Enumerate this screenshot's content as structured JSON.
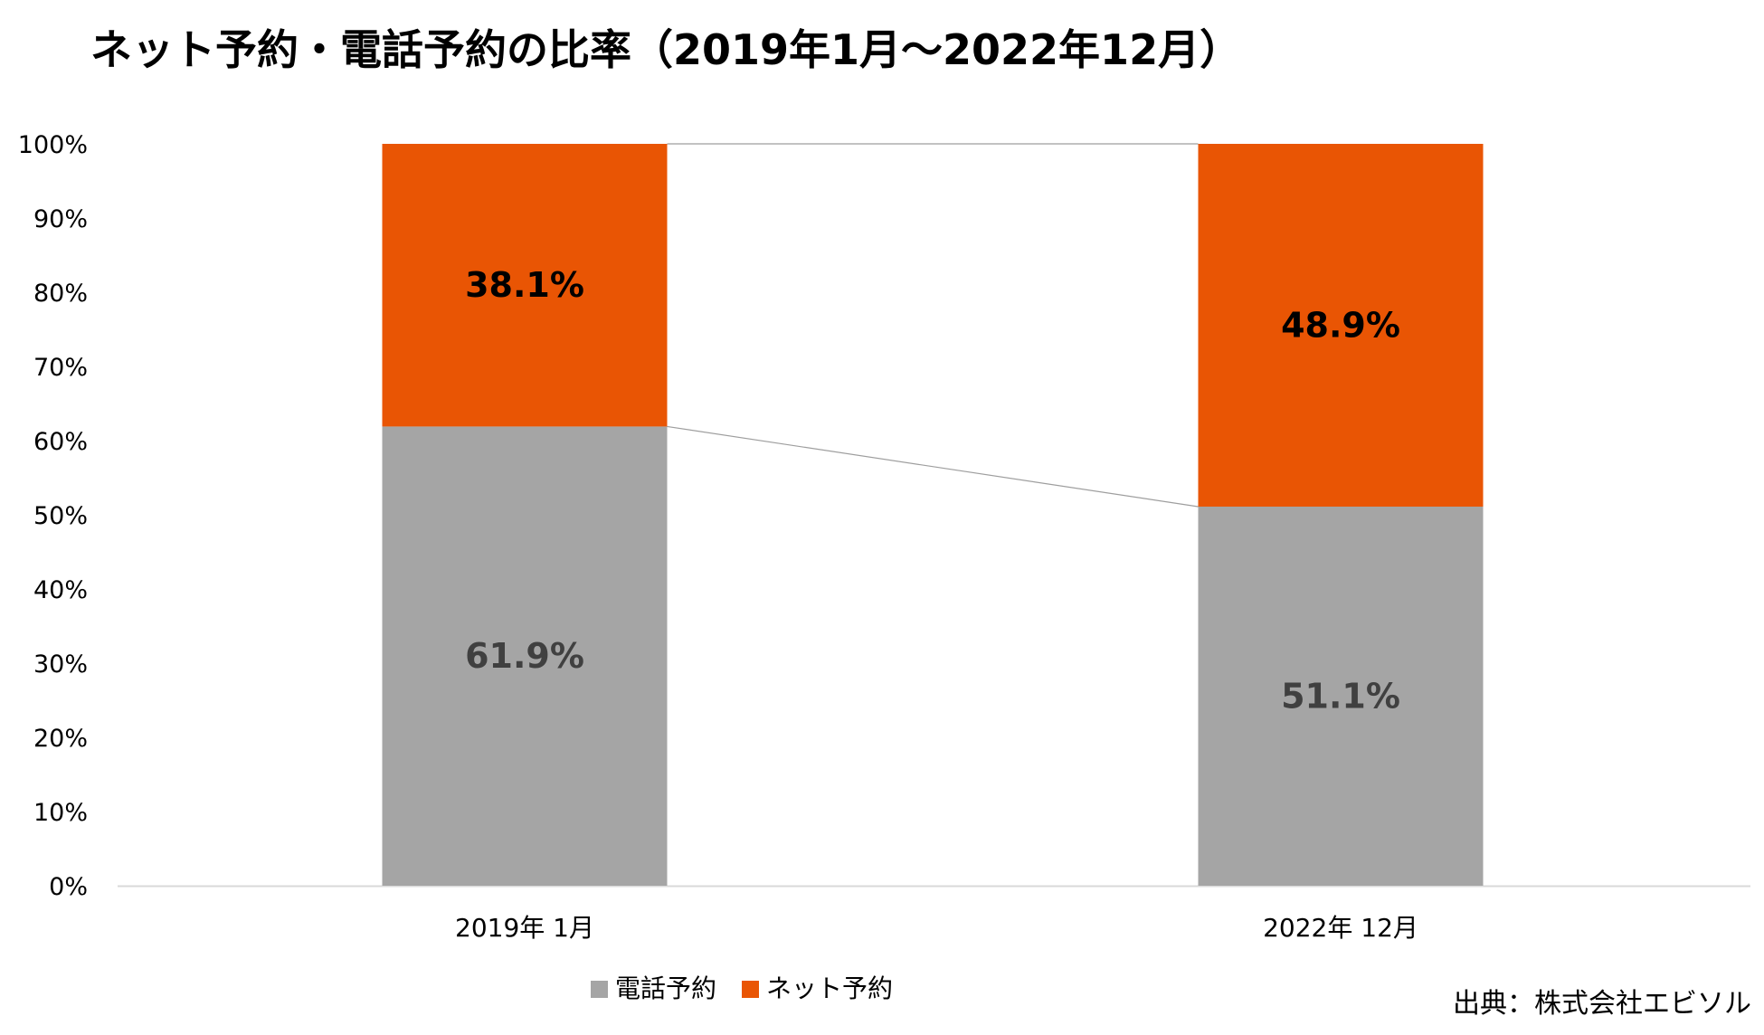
{
  "title": "ネット予約・電話予約の比率（2019年1月～2022年12月）",
  "source": "出典：株式会社エビソル",
  "colors": {
    "phone": "#a5a5a5",
    "net": "#e95504",
    "phone_label": "#404040",
    "net_label": "#000000",
    "axis": "#d9d9d9",
    "connector": "#9e9e9e"
  },
  "chart_data": {
    "type": "bar",
    "stacked": true,
    "title": "ネット予約・電話予約の比率（2019年1月～2022年12月）",
    "categories": [
      "2019年 1月",
      "2022年 12月"
    ],
    "series": [
      {
        "name": "電話予約",
        "values": [
          61.9,
          51.1
        ],
        "labels": [
          "61.9%",
          "51.1%"
        ]
      },
      {
        "name": "ネット予約",
        "values": [
          38.1,
          48.9
        ],
        "labels": [
          "38.1%",
          "48.9%"
        ]
      }
    ],
    "ylim": [
      0,
      100
    ],
    "yticks": [
      "0%",
      "10%",
      "20%",
      "30%",
      "40%",
      "50%",
      "60%",
      "70%",
      "80%",
      "90%",
      "100%"
    ],
    "xlabel": "",
    "ylabel": "",
    "grid": false,
    "series_lines": true,
    "legend": "bottom"
  }
}
